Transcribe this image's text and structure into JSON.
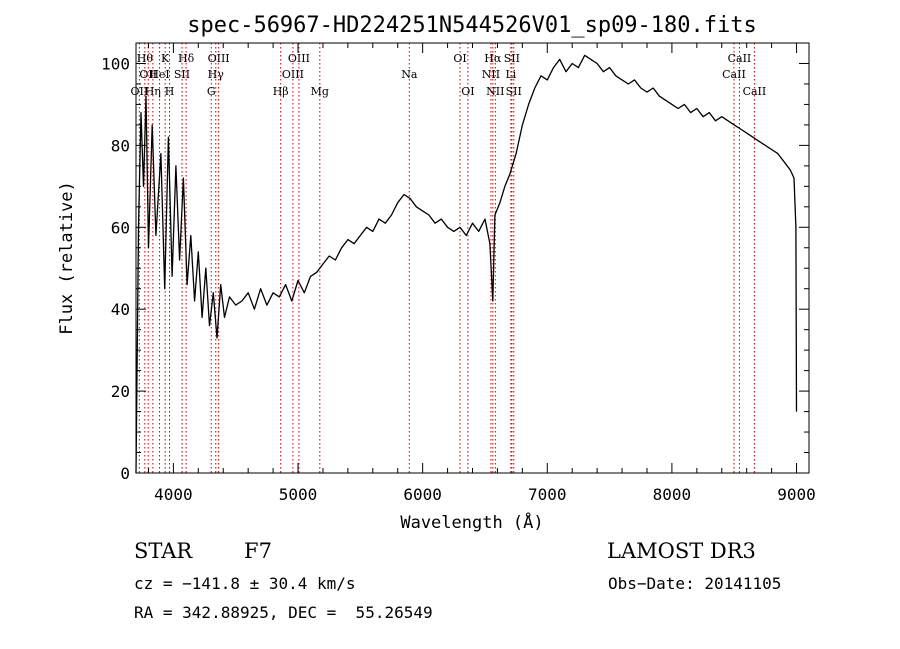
{
  "chart_data": {
    "type": "line",
    "title": "spec-56967-HD224251N544526V01_sp09-180.fits",
    "xlabel": "Wavelength (Å)",
    "ylabel": "Flux (relative)",
    "xlim": [
      3700,
      9100
    ],
    "ylim": [
      0,
      105
    ],
    "x_ticks": [
      4000,
      5000,
      6000,
      7000,
      8000,
      9000
    ],
    "y_ticks": [
      0,
      20,
      40,
      60,
      80,
      100
    ],
    "grid": false,
    "line_color": "#000000",
    "marker_color": "#cc0000",
    "series": [
      {
        "x": [
          3700,
          3720,
          3740,
          3760,
          3780,
          3800,
          3830,
          3860,
          3900,
          3930,
          3960,
          3990,
          4020,
          4050,
          4080,
          4110,
          4140,
          4170,
          4200,
          4230,
          4260,
          4290,
          4320,
          4350,
          4380,
          4410,
          4450,
          4500,
          4550,
          4600,
          4650,
          4700,
          4750,
          4800,
          4850,
          4900,
          4950,
          5000,
          5050,
          5100,
          5150,
          5200,
          5250,
          5300,
          5350,
          5400,
          5450,
          5500,
          5550,
          5600,
          5650,
          5700,
          5750,
          5800,
          5850,
          5900,
          5950,
          6000,
          6050,
          6100,
          6150,
          6200,
          6250,
          6300,
          6350,
          6400,
          6450,
          6500,
          6540,
          6563,
          6580,
          6620,
          6660,
          6700,
          6750,
          6800,
          6850,
          6900,
          6950,
          7000,
          7050,
          7100,
          7150,
          7200,
          7250,
          7300,
          7350,
          7400,
          7450,
          7500,
          7550,
          7600,
          7650,
          7700,
          7750,
          7800,
          7850,
          7900,
          7950,
          8000,
          8050,
          8100,
          8150,
          8200,
          8250,
          8300,
          8350,
          8400,
          8450,
          8500,
          8550,
          8600,
          8650,
          8700,
          8750,
          8800,
          8850,
          8900,
          8950,
          8980,
          8995,
          9000
        ],
        "y": [
          0,
          60,
          88,
          70,
          92,
          55,
          85,
          58,
          78,
          45,
          82,
          48,
          75,
          52,
          72,
          46,
          58,
          42,
          54,
          38,
          50,
          36,
          44,
          33,
          46,
          38,
          43,
          41,
          42,
          44,
          40,
          45,
          41,
          44,
          43,
          46,
          42,
          47,
          44,
          48,
          49,
          51,
          53,
          52,
          55,
          57,
          56,
          58,
          60,
          59,
          62,
          61,
          63,
          66,
          68,
          67,
          65,
          64,
          63,
          61,
          62,
          60,
          59,
          60,
          58,
          61,
          59,
          62,
          56,
          42,
          63,
          66,
          70,
          73,
          78,
          85,
          90,
          94,
          97,
          96,
          99,
          101,
          98,
          100,
          99,
          102,
          101,
          100,
          98,
          99,
          97,
          96,
          95,
          96,
          94,
          93,
          94,
          92,
          91,
          90,
          89,
          90,
          88,
          89,
          87,
          88,
          86,
          87,
          86,
          85,
          84,
          83,
          82,
          81,
          80,
          79,
          78,
          76,
          74,
          72,
          60,
          15
        ]
      }
    ],
    "lines": [
      {
        "wl": 3727,
        "labels": [
          "OII"
        ],
        "row": 3
      },
      {
        "wl": 3771,
        "labels": [
          "Hθ"
        ],
        "row": 1
      },
      {
        "wl": 3798,
        "labels": [
          "OII"
        ],
        "row": 2
      },
      {
        "wl": 3835,
        "labels": [
          "Hη"
        ],
        "row": 3
      },
      {
        "wl": 3889,
        "labels": [
          "HeI"
        ],
        "row": 2
      },
      {
        "wl": 3934,
        "labels": [
          "K"
        ],
        "row": 1
      },
      {
        "wl": 3969,
        "labels": [
          "H"
        ],
        "row": 3
      },
      {
        "wl": 4069,
        "labels": [
          "SII"
        ],
        "row": 2
      },
      {
        "wl": 4102,
        "labels": [
          "Hδ"
        ],
        "row": 1
      },
      {
        "wl": 4304,
        "labels": [
          "G"
        ],
        "row": 3
      },
      {
        "wl": 4340,
        "labels": [
          "Hγ"
        ],
        "row": 2
      },
      {
        "wl": 4363,
        "labels": [
          "OIII"
        ],
        "row": 1
      },
      {
        "wl": 4861,
        "labels": [
          "Hβ"
        ],
        "row": 3
      },
      {
        "wl": 4959,
        "labels": [
          "OIII"
        ],
        "row": 2
      },
      {
        "wl": 5007,
        "labels": [
          "OIII"
        ],
        "row": 1
      },
      {
        "wl": 5175,
        "labels": [
          "Mg"
        ],
        "row": 3
      },
      {
        "wl": 5893,
        "labels": [
          "Na"
        ],
        "row": 2
      },
      {
        "wl": 6300,
        "labels": [
          "OI"
        ],
        "row": 1
      },
      {
        "wl": 6363,
        "labels": [
          "OI"
        ],
        "row": 3
      },
      {
        "wl": 6548,
        "labels": [
          "NII"
        ],
        "row": 2
      },
      {
        "wl": 6563,
        "labels": [
          "Hα"
        ],
        "row": 1
      },
      {
        "wl": 6583,
        "labels": [
          "NII"
        ],
        "row": 3
      },
      {
        "wl": 6708,
        "labels": [
          "Li"
        ],
        "row": 2
      },
      {
        "wl": 6716,
        "labels": [
          "SII"
        ],
        "row": 1
      },
      {
        "wl": 6731,
        "labels": [
          "SII"
        ],
        "row": 3
      },
      {
        "wl": 8498,
        "labels": [
          "CaII"
        ],
        "row": 2
      },
      {
        "wl": 8542,
        "labels": [
          "CaII"
        ],
        "row": 1
      },
      {
        "wl": 8662,
        "labels": [
          "CaII"
        ],
        "row": 3
      }
    ]
  },
  "info": {
    "class_label": "STAR",
    "subclass": "F7",
    "survey": "LAMOST DR3",
    "cz": "cz = −141.8 ± 30.4 km/s",
    "obs_date": "Obs−Date: 20141105",
    "coords": "RA = 342.88925, DEC =  55.26549"
  }
}
